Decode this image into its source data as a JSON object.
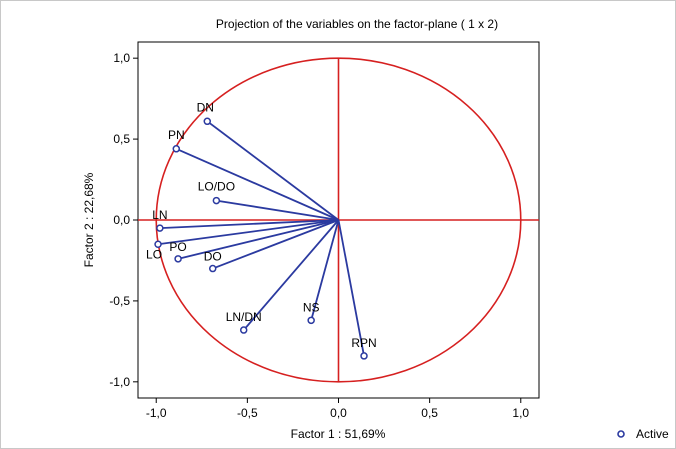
{
  "chart_data": {
    "type": "scatter",
    "title": "Projection of the variables on the factor-plane (  1 x   2)",
    "xlabel": "Factor 1 : 51,69%",
    "ylabel": "Factor 2 : 22,68%",
    "xlim": [
      -1.1,
      1.1
    ],
    "ylim": [
      -1.1,
      1.1
    ],
    "xticks": [
      "-1,0",
      "-0,5",
      "0,0",
      "0,5",
      "1,0"
    ],
    "xtick_values": [
      -1.0,
      -0.5,
      0.0,
      0.5,
      1.0
    ],
    "yticks": [
      "1,0",
      "0,5",
      "0,0",
      "-0,5",
      "-1,0"
    ],
    "ytick_values": [
      1.0,
      0.5,
      0.0,
      -0.5,
      -1.0
    ],
    "legend": {
      "label": "Active",
      "position": "bottom-right"
    },
    "unit_circle": true,
    "colors": {
      "vector": "#2b3aa0",
      "circle": "#d62020",
      "point": "#2b3aa0"
    },
    "points": [
      {
        "label": "DN",
        "x": -0.72,
        "y": 0.61
      },
      {
        "label": "PN",
        "x": -0.89,
        "y": 0.44
      },
      {
        "label": "LO/DO",
        "x": -0.67,
        "y": 0.12
      },
      {
        "label": "LN",
        "x": -0.98,
        "y": -0.05
      },
      {
        "label": "LO",
        "x": -0.99,
        "y": -0.15
      },
      {
        "label": "PO",
        "x": -0.88,
        "y": -0.24
      },
      {
        "label": "DO",
        "x": -0.69,
        "y": -0.3
      },
      {
        "label": "LN/DN",
        "x": -0.52,
        "y": -0.68
      },
      {
        "label": "NS",
        "x": -0.15,
        "y": -0.62
      },
      {
        "label": "RPN",
        "x": 0.14,
        "y": -0.84
      }
    ]
  }
}
